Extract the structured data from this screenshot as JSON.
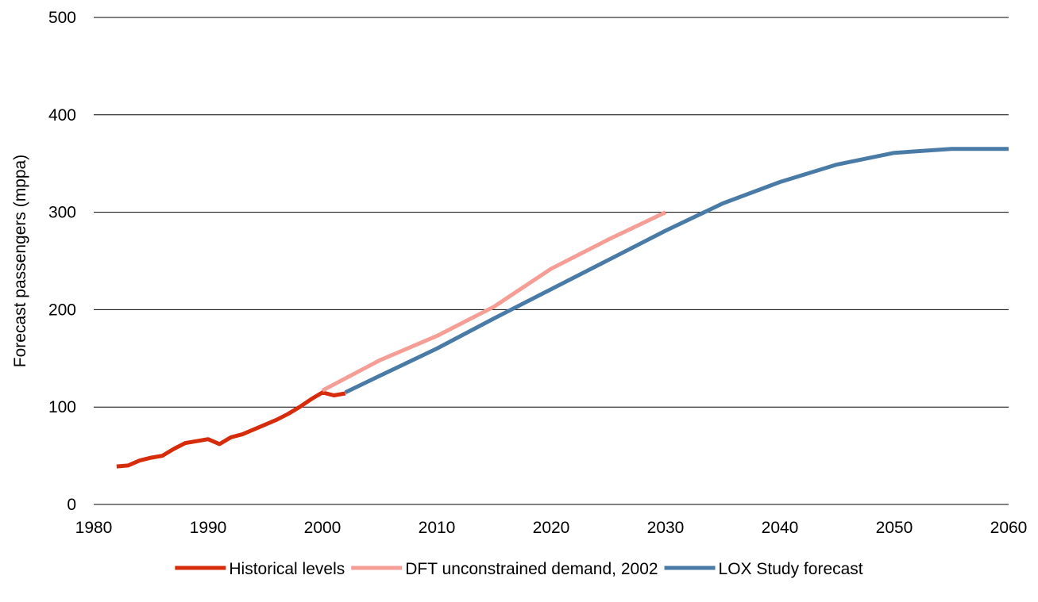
{
  "chart_data": {
    "type": "line",
    "title": "",
    "xlabel": "",
    "ylabel": "Forecast passengers (mppa)",
    "xlim": [
      1980,
      2060
    ],
    "ylim": [
      0,
      500
    ],
    "xticks": [
      "1980",
      "1990",
      "2000",
      "2010",
      "2020",
      "2030",
      "2040",
      "2050",
      "2060"
    ],
    "yticks": [
      "0",
      "100",
      "200",
      "300",
      "400",
      "500"
    ],
    "grid": "horizontal",
    "legend_position": "bottom",
    "series": [
      {
        "name": "Historical levels",
        "color": "#d62c0c",
        "x": [
          1982,
          1983,
          1984,
          1985,
          1986,
          1987,
          1988,
          1989,
          1990,
          1991,
          1992,
          1993,
          1994,
          1995,
          1996,
          1997,
          1998,
          1999,
          2000,
          2001,
          2002
        ],
        "y": [
          39,
          40,
          45,
          48,
          50,
          57,
          63,
          65,
          67,
          62,
          69,
          72,
          77,
          82,
          87,
          93,
          100,
          108,
          115,
          112,
          114
        ]
      },
      {
        "name": "DFT unconstrained demand, 2002",
        "color": "#f59e96",
        "x": [
          2000,
          2005,
          2010,
          2015,
          2020,
          2025,
          2030
        ],
        "y": [
          117,
          148,
          173,
          203,
          242,
          272,
          300
        ]
      },
      {
        "name": "LOX Study forecast",
        "color": "#4a7ba6",
        "x": [
          2002,
          2005,
          2010,
          2015,
          2020,
          2025,
          2030,
          2035,
          2040,
          2045,
          2050,
          2055,
          2060
        ],
        "y": [
          115,
          132,
          160,
          191,
          221,
          251,
          281,
          309,
          331,
          349,
          361,
          365,
          365
        ]
      }
    ]
  }
}
